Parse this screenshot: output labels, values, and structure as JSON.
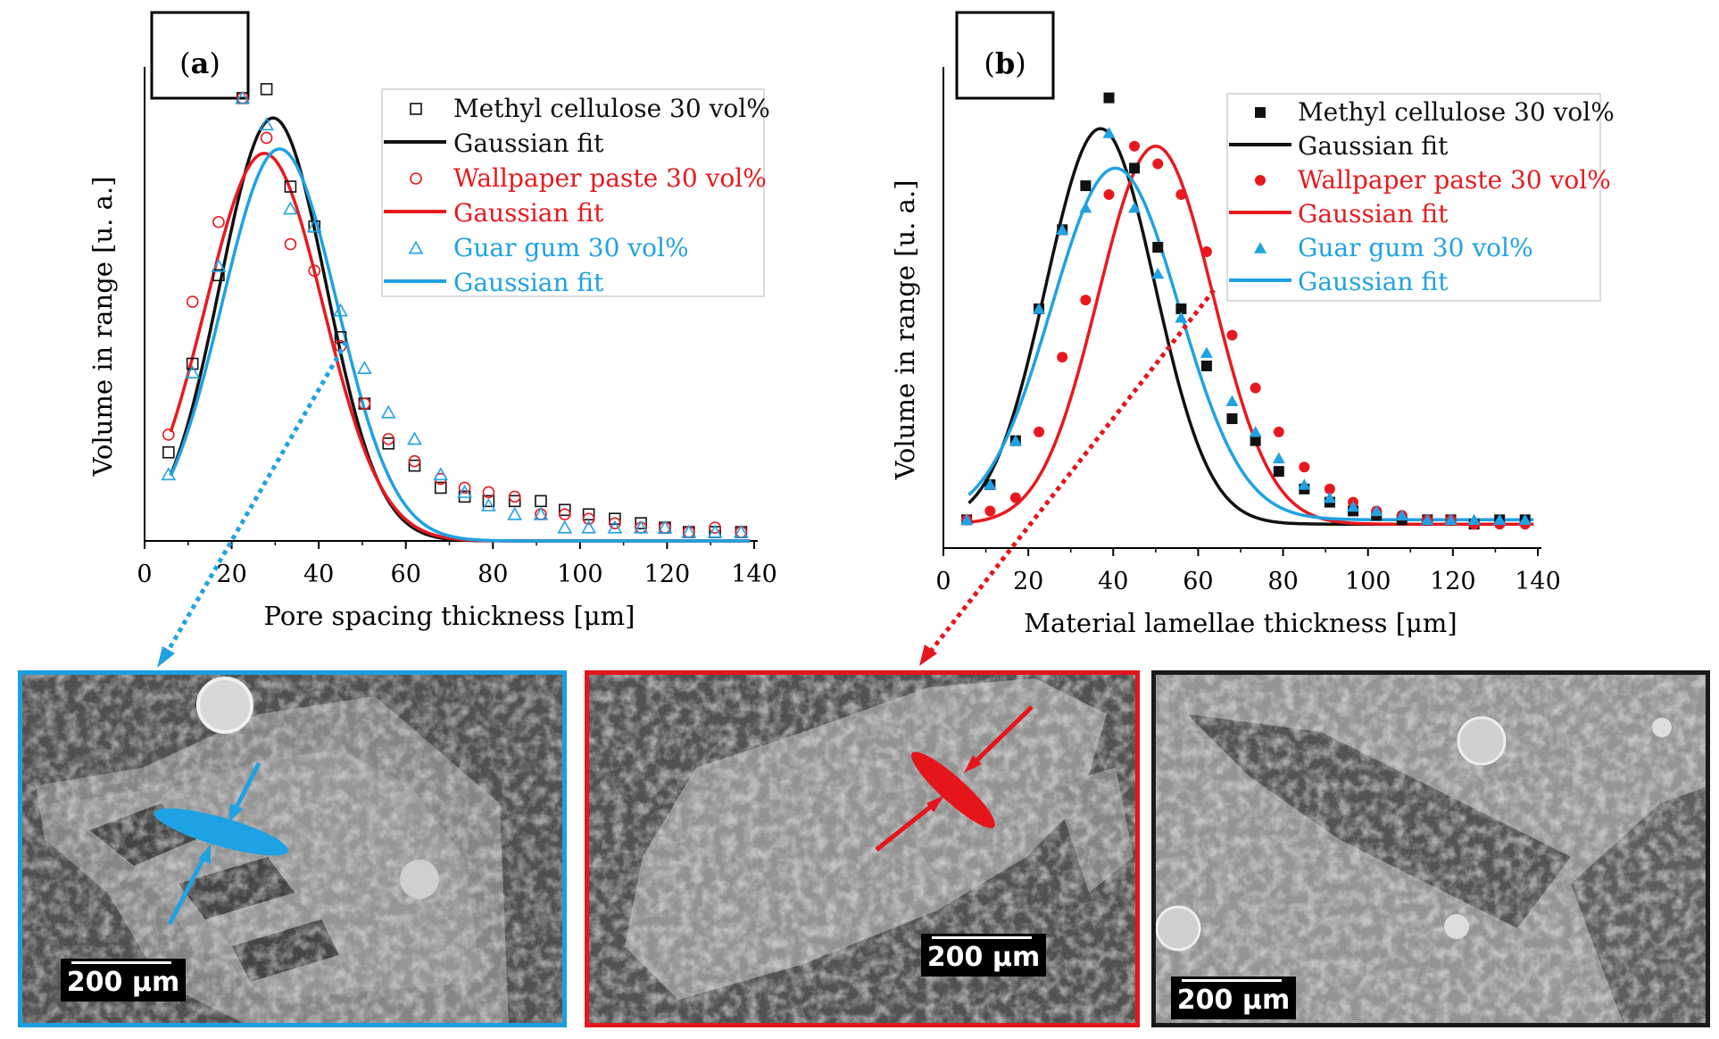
{
  "colors": {
    "black": "#111111",
    "red": "#e8191e",
    "blue": "#1fa2e3",
    "frame_blue": "#1b9fe0",
    "frame_red": "#e4161c",
    "frame_black": "#1a1a1a"
  },
  "chart_data": [
    {
      "type": "scatter",
      "panel_label": "a",
      "label_open": "(",
      "label_close": ")",
      "title": "",
      "xlabel": "Pore spacing thickness [μm]",
      "ylabel": "Volume in range [u. a.]",
      "xlim": [
        0,
        140
      ],
      "ylim": [
        0,
        1.05
      ],
      "xticks": [
        0,
        20,
        40,
        60,
        80,
        100,
        120,
        140
      ],
      "legend_position": "top-right",
      "series": [
        {
          "name": "Methyl cellulose 30 vol%",
          "kind": "points",
          "marker": "open-square",
          "color": "#111111",
          "x": [
            5.5,
            11,
            17,
            22.5,
            28,
            33.5,
            39,
            45,
            50.5,
            56,
            62,
            68,
            73.5,
            79,
            85,
            91,
            96.5,
            102,
            108,
            114,
            119.5,
            125,
            131,
            137
          ],
          "y": [
            0.2,
            0.4,
            0.6,
            1.0,
            1.02,
            0.8,
            0.71,
            0.46,
            0.31,
            0.22,
            0.17,
            0.12,
            0.1,
            0.09,
            0.09,
            0.09,
            0.07,
            0.06,
            0.05,
            0.04,
            0.03,
            0.02,
            0.02,
            0.02
          ]
        },
        {
          "name": "Gaussian fit",
          "kind": "gaussian",
          "color": "#111111",
          "amp": 0.955,
          "mu": 29.5,
          "sigma": 12.2,
          "x_range": [
            6,
            139
          ]
        },
        {
          "name": "Wallpaper paste 30 vol%",
          "kind": "points",
          "marker": "open-circle",
          "color": "#e8191e",
          "x": [
            5.5,
            11,
            17,
            22.5,
            28,
            33.5,
            39,
            45,
            50.5,
            56,
            62,
            68,
            73.5,
            79,
            85,
            91,
            96.5,
            102,
            108,
            114,
            119.5,
            125,
            131,
            137
          ],
          "y": [
            0.24,
            0.54,
            0.72,
            1.0,
            0.91,
            0.67,
            0.61,
            0.44,
            0.31,
            0.23,
            0.18,
            0.14,
            0.12,
            0.11,
            0.1,
            0.06,
            0.06,
            0.05,
            0.04,
            0.03,
            0.03,
            0.02,
            0.03,
            0.02
          ]
        },
        {
          "name": "Gaussian fit",
          "kind": "gaussian",
          "color": "#e8191e",
          "amp": 0.875,
          "mu": 27.5,
          "sigma": 13.5,
          "x_range": [
            6,
            139
          ]
        },
        {
          "name": "Guar gum 30 vol%",
          "kind": "points",
          "marker": "open-triangle",
          "color": "#1fa2e3",
          "x": [
            5.5,
            11,
            17,
            22.5,
            28,
            33.5,
            39,
            45,
            50.5,
            56,
            62,
            68,
            73.5,
            79,
            85,
            91,
            96.5,
            102,
            108,
            114,
            119.5,
            125,
            131,
            137
          ],
          "y": [
            0.15,
            0.38,
            0.62,
            1.0,
            0.94,
            0.75,
            0.71,
            0.52,
            0.39,
            0.29,
            0.23,
            0.15,
            0.11,
            0.08,
            0.06,
            0.06,
            0.03,
            0.03,
            0.03,
            0.03,
            0.03,
            0.02,
            0.02,
            0.02
          ]
        },
        {
          "name": "Gaussian fit",
          "kind": "gaussian",
          "color": "#1fa2e3",
          "amp": 0.885,
          "mu": 31,
          "sigma": 13.2,
          "x_range": [
            6,
            139
          ]
        }
      ]
    },
    {
      "type": "scatter",
      "panel_label": "b",
      "label_open": "(",
      "label_close": ")",
      "title": "",
      "xlabel": "Material lamellae thickness [μm]",
      "ylabel": "Volume in range [u. a.]",
      "xlim": [
        0,
        140
      ],
      "ylim": [
        0,
        1.05
      ],
      "xticks": [
        0,
        20,
        40,
        60,
        80,
        100,
        120,
        140
      ],
      "legend_position": "top-right",
      "series": [
        {
          "name": "Methyl cellulose 30 vol%",
          "kind": "points",
          "marker": "filled-square",
          "color": "#111111",
          "x": [
            5.5,
            11,
            17,
            22.5,
            28,
            33.5,
            39,
            45,
            50.5,
            56,
            62,
            68,
            73.5,
            79,
            85,
            91,
            96.5,
            102,
            108,
            114,
            119.5,
            125,
            131,
            137
          ],
          "y": [
            0.04,
            0.12,
            0.22,
            0.52,
            0.7,
            0.8,
            1.0,
            0.84,
            0.66,
            0.52,
            0.39,
            0.27,
            0.22,
            0.15,
            0.11,
            0.08,
            0.06,
            0.05,
            0.04,
            0.04,
            0.04,
            0.03,
            0.04,
            0.04
          ]
        },
        {
          "name": "Gaussian fit",
          "kind": "gaussian",
          "color": "#111111",
          "amp": 0.9,
          "mu": 37,
          "sigma": 12.8,
          "x_range": [
            6,
            139
          ],
          "base": 0.03
        },
        {
          "name": "Wallpaper paste 30 vol%",
          "kind": "points",
          "marker": "filled-circle",
          "color": "#e8191e",
          "x": [
            5.5,
            11,
            17,
            22.5,
            28,
            33.5,
            39,
            45,
            50.5,
            56,
            62,
            68,
            73.5,
            79,
            85,
            91,
            96.5,
            102,
            108,
            114,
            119.5,
            125,
            131,
            137
          ],
          "y": [
            0.04,
            0.06,
            0.09,
            0.24,
            0.41,
            0.54,
            0.78,
            0.89,
            0.85,
            0.78,
            0.65,
            0.46,
            0.34,
            0.24,
            0.16,
            0.11,
            0.08,
            0.06,
            0.05,
            0.04,
            0.04,
            0.03,
            0.03,
            0.03
          ]
        },
        {
          "name": "Gaussian fit",
          "kind": "gaussian",
          "color": "#e8191e",
          "amp": 0.86,
          "mu": 50,
          "sigma": 13.5,
          "x_range": [
            6,
            139
          ],
          "base": 0.03
        },
        {
          "name": "Guar gum 30 vol%",
          "kind": "points",
          "marker": "filled-triangle",
          "color": "#1fa2e3",
          "x": [
            5.5,
            11,
            17,
            22.5,
            28,
            33.5,
            39,
            45,
            50.5,
            56,
            62,
            68,
            73.5,
            79,
            85,
            91,
            96.5,
            102,
            108,
            114,
            119.5,
            125,
            131,
            137
          ],
          "y": [
            0.04,
            0.12,
            0.22,
            0.52,
            0.7,
            0.75,
            0.92,
            0.75,
            0.6,
            0.5,
            0.42,
            0.31,
            0.24,
            0.18,
            0.12,
            0.09,
            0.07,
            0.06,
            0.05,
            0.04,
            0.04,
            0.04,
            0.04,
            0.04
          ]
        },
        {
          "name": "Gaussian fit",
          "kind": "gaussian",
          "color": "#1fa2e3",
          "amp": 0.8,
          "mu": 40.5,
          "sigma": 15,
          "x_range": [
            6,
            139
          ],
          "base": 0.04
        }
      ]
    }
  ],
  "micrographs": [
    {
      "name": "guar-gum",
      "scale_label": "200 μm"
    },
    {
      "name": "wallpaper-paste",
      "scale_label": "200 μm"
    },
    {
      "name": "methyl-cellulose",
      "scale_label": "200 μm"
    }
  ]
}
